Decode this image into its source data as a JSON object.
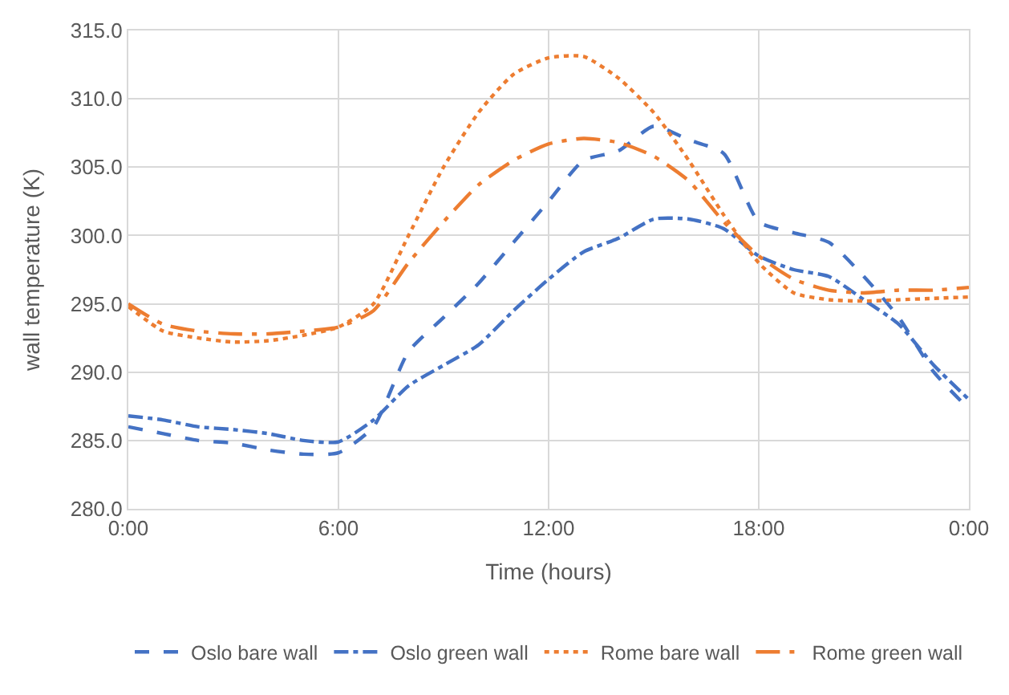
{
  "chart_data": {
    "type": "line",
    "xlabel": "Time (hours)",
    "ylabel": "wall temperature (K)",
    "x": [
      0,
      1,
      2,
      3,
      4,
      5,
      6,
      7,
      8,
      9,
      10,
      11,
      12,
      13,
      14,
      15,
      16,
      17,
      18,
      19,
      20,
      21,
      22,
      23,
      24
    ],
    "series": [
      {
        "name": "Oslo bare wall",
        "color": "#4472c4",
        "line_style": "dashed",
        "values": [
          286.0,
          285.5,
          285.0,
          284.8,
          284.3,
          284.0,
          284.1,
          286.0,
          291.5,
          294.0,
          296.5,
          299.5,
          302.5,
          305.5,
          306.2,
          308.0,
          307.0,
          306.0,
          301.0,
          300.2,
          299.5,
          297.0,
          294.0,
          290.0,
          287.3
        ]
      },
      {
        "name": "Oslo green wall",
        "color": "#4472c4",
        "line_style": "dashdot",
        "values": [
          286.8,
          286.5,
          286.0,
          285.8,
          285.5,
          285.0,
          284.9,
          286.5,
          289.0,
          290.5,
          292.0,
          294.5,
          296.8,
          298.8,
          299.8,
          301.2,
          301.2,
          300.5,
          298.5,
          297.5,
          297.0,
          295.3,
          293.5,
          290.5,
          288.0
        ]
      },
      {
        "name": "Rome bare wall",
        "color": "#ed7d31",
        "line_style": "dotted",
        "values": [
          294.8,
          293.0,
          292.5,
          292.2,
          292.3,
          292.7,
          293.3,
          295.0,
          300.0,
          305.0,
          309.0,
          311.8,
          313.0,
          313.1,
          311.5,
          309.0,
          305.5,
          301.5,
          298.0,
          295.8,
          295.3,
          295.2,
          295.3,
          295.4,
          295.5
        ]
      },
      {
        "name": "Rome green wall",
        "color": "#ed7d31",
        "line_style": "longdashdot",
        "values": [
          295.0,
          293.5,
          293.0,
          292.8,
          292.8,
          293.0,
          293.3,
          294.5,
          298.0,
          301.0,
          303.7,
          305.5,
          306.7,
          307.1,
          306.8,
          305.8,
          304.0,
          301.0,
          298.5,
          296.8,
          296.0,
          295.8,
          296.0,
          296.0,
          296.2
        ]
      }
    ],
    "xlim": [
      0,
      24
    ],
    "xticks": [
      {
        "value": 0,
        "label": "0:00"
      },
      {
        "value": 6,
        "label": "6:00"
      },
      {
        "value": 12,
        "label": "12:00"
      },
      {
        "value": 18,
        "label": "18:00"
      },
      {
        "value": 24,
        "label": "0:00"
      }
    ],
    "ylim": [
      280,
      315
    ],
    "yticks": [
      {
        "value": 280,
        "label": "280.0"
      },
      {
        "value": 285,
        "label": "285.0"
      },
      {
        "value": 290,
        "label": "290.0"
      },
      {
        "value": 295,
        "label": "295.0"
      },
      {
        "value": 300,
        "label": "300.0"
      },
      {
        "value": 305,
        "label": "305.0"
      },
      {
        "value": 310,
        "label": "310.0"
      },
      {
        "value": 315,
        "label": "315.0"
      }
    ],
    "grid": true,
    "legend": "bottom",
    "marker": "none"
  }
}
